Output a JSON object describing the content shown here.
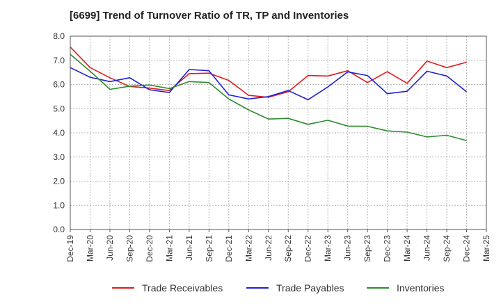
{
  "chart_data": {
    "type": "line",
    "title": "[6699]  Trend of Turnover Ratio of TR, TP and Inventories",
    "xlabel": "",
    "ylabel": "",
    "ylim": [
      0,
      8
    ],
    "yticks": [
      "0.0",
      "1.0",
      "2.0",
      "3.0",
      "4.0",
      "5.0",
      "6.0",
      "7.0",
      "8.0"
    ],
    "x": [
      "Dec-19",
      "Mar-20",
      "Jun-20",
      "Sep-20",
      "Dec-20",
      "Mar-21",
      "Jun-21",
      "Sep-21",
      "Dec-21",
      "Mar-22",
      "Jun-22",
      "Sep-22",
      "Dec-22",
      "Mar-23",
      "Jun-23",
      "Sep-23",
      "Dec-23",
      "Mar-24",
      "Jun-24",
      "Sep-24",
      "Dec-24"
    ],
    "xticks": [
      "Dec-19",
      "Mar-20",
      "Jun-20",
      "Sep-20",
      "Dec-20",
      "Mar-21",
      "Jun-21",
      "Sep-21",
      "Dec-21",
      "Mar-22",
      "Jun-22",
      "Sep-22",
      "Dec-22",
      "Mar-23",
      "Jun-23",
      "Sep-23",
      "Dec-23",
      "Mar-24",
      "Jun-24",
      "Sep-24",
      "Dec-24",
      "Mar-25"
    ],
    "grid": true,
    "legend_position": "bottom",
    "series": [
      {
        "name": "Trade Receivables",
        "color": "#e31a1c",
        "values": [
          7.55,
          6.7,
          6.28,
          5.92,
          5.85,
          5.75,
          6.45,
          6.47,
          6.17,
          5.55,
          5.47,
          5.7,
          6.37,
          6.35,
          6.57,
          6.08,
          6.53,
          6.05,
          6.97,
          6.7,
          6.92
        ]
      },
      {
        "name": "Trade Payables",
        "color": "#1f1fd6",
        "values": [
          6.7,
          6.3,
          6.12,
          6.28,
          5.78,
          5.67,
          6.62,
          6.57,
          5.57,
          5.4,
          5.5,
          5.75,
          5.37,
          5.9,
          6.52,
          6.37,
          5.62,
          5.72,
          6.55,
          6.35,
          5.7
        ]
      },
      {
        "name": "Inventories",
        "color": "#2e8b2e",
        "values": [
          7.25,
          6.55,
          5.8,
          5.93,
          5.98,
          5.83,
          6.12,
          6.08,
          5.4,
          4.95,
          4.57,
          4.6,
          4.35,
          4.52,
          4.28,
          4.27,
          4.08,
          4.03,
          3.83,
          3.9,
          3.68
        ]
      }
    ]
  }
}
